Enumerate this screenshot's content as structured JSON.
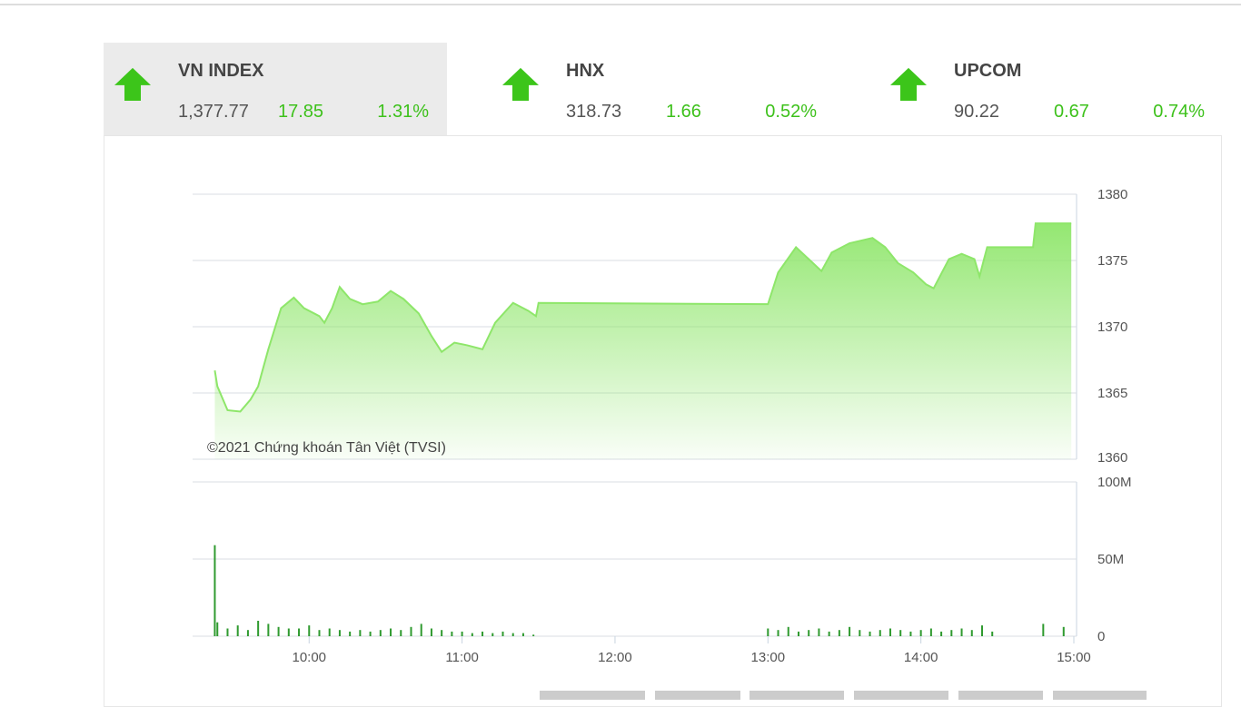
{
  "indices": [
    {
      "name": "VN INDEX",
      "value": "1,377.77",
      "change": "17.85",
      "percent": "1.31%"
    },
    {
      "name": "HNX",
      "value": "318.73",
      "change": "1.66",
      "percent": "0.52%"
    },
    {
      "name": "UPCOM",
      "value": "90.22",
      "change": "0.67",
      "percent": "0.74%"
    }
  ],
  "watermark": "©2021 Chứng khoán Tân Việt (TVSI)",
  "chart_data": [
    {
      "type": "area",
      "color": "#8ee66a",
      "x": [
        "09:23",
        "09:24",
        "09:28",
        "09:33",
        "09:37",
        "09:40",
        "09:44",
        "09:49",
        "09:54",
        "09:58",
        "10:04",
        "10:06",
        "10:09",
        "10:12",
        "10:16",
        "10:21",
        "10:27",
        "10:32",
        "10:37",
        "10:43",
        "10:48",
        "10:52",
        "10:57",
        "11:02",
        "11:08",
        "11:13",
        "11:20",
        "11:26",
        "11:29",
        "11:30",
        "13:00",
        "13:04",
        "13:11",
        "13:16",
        "13:21",
        "13:25",
        "13:32",
        "13:41",
        "13:46",
        "13:51",
        "13:57",
        "14:02",
        "14:05",
        "14:11",
        "14:16",
        "14:21",
        "14:23",
        "14:26",
        "14:44",
        "14:45",
        "14:59"
      ],
      "values": [
        1366.7,
        1365.5,
        1363.7,
        1363.6,
        1364.5,
        1365.5,
        1368.3,
        1371.4,
        1372.2,
        1371.4,
        1370.8,
        1370.3,
        1371.4,
        1373.0,
        1372.1,
        1371.7,
        1371.9,
        1372.7,
        1372.1,
        1371.0,
        1369.3,
        1368.1,
        1368.8,
        1368.6,
        1368.3,
        1370.3,
        1371.8,
        1371.2,
        1370.8,
        1371.8,
        1371.7,
        1374.1,
        1376.0,
        1375.1,
        1374.2,
        1375.6,
        1376.3,
        1376.7,
        1376.0,
        1374.8,
        1374.1,
        1373.2,
        1372.9,
        1375.1,
        1375.5,
        1375.1,
        1373.8,
        1376.0,
        1376.0,
        1377.8,
        1377.8
      ],
      "xlim": [
        "09:15",
        "15:00"
      ],
      "ylim": [
        1360,
        1380
      ],
      "yticks": [
        1360,
        1365,
        1370,
        1375,
        1380
      ],
      "grid": true
    },
    {
      "type": "bar",
      "color": "#2f9a2f",
      "x": [
        "09:23",
        "09:24",
        "09:28",
        "09:32",
        "09:36",
        "09:40",
        "09:44",
        "09:48",
        "09:52",
        "09:56",
        "10:00",
        "10:04",
        "10:08",
        "10:12",
        "10:16",
        "10:20",
        "10:24",
        "10:28",
        "10:32",
        "10:36",
        "10:40",
        "10:44",
        "10:48",
        "10:52",
        "10:56",
        "11:00",
        "11:04",
        "11:08",
        "11:12",
        "11:16",
        "11:20",
        "11:24",
        "11:28",
        "13:00",
        "13:04",
        "13:08",
        "13:12",
        "13:16",
        "13:20",
        "13:24",
        "13:28",
        "13:32",
        "13:36",
        "13:40",
        "13:44",
        "13:48",
        "13:52",
        "13:56",
        "14:00",
        "14:04",
        "14:08",
        "14:12",
        "14:16",
        "14:20",
        "14:24",
        "14:28",
        "14:48",
        "14:56"
      ],
      "values": [
        59,
        9,
        5,
        7,
        4,
        10,
        8,
        6,
        5,
        5,
        7,
        4,
        5,
        4,
        3,
        4,
        3,
        4,
        5,
        4,
        6,
        8,
        5,
        4,
        3,
        3,
        2,
        3,
        2,
        3,
        2,
        2,
        1,
        5,
        4,
        6,
        3,
        4,
        5,
        3,
        4,
        6,
        4,
        3,
        4,
        5,
        4,
        3,
        4,
        5,
        3,
        4,
        5,
        4,
        7,
        3,
        8,
        6
      ],
      "xlim": [
        "09:15",
        "15:00"
      ],
      "xticks": [
        "10:00",
        "11:00",
        "12:00",
        "13:00",
        "14:00",
        "15:00"
      ],
      "ylim": [
        0,
        100
      ],
      "yticks": [
        0,
        {
          "value": 50,
          "label": "50M"
        },
        {
          "value": 100,
          "label": "100M"
        }
      ],
      "grid": true
    }
  ]
}
